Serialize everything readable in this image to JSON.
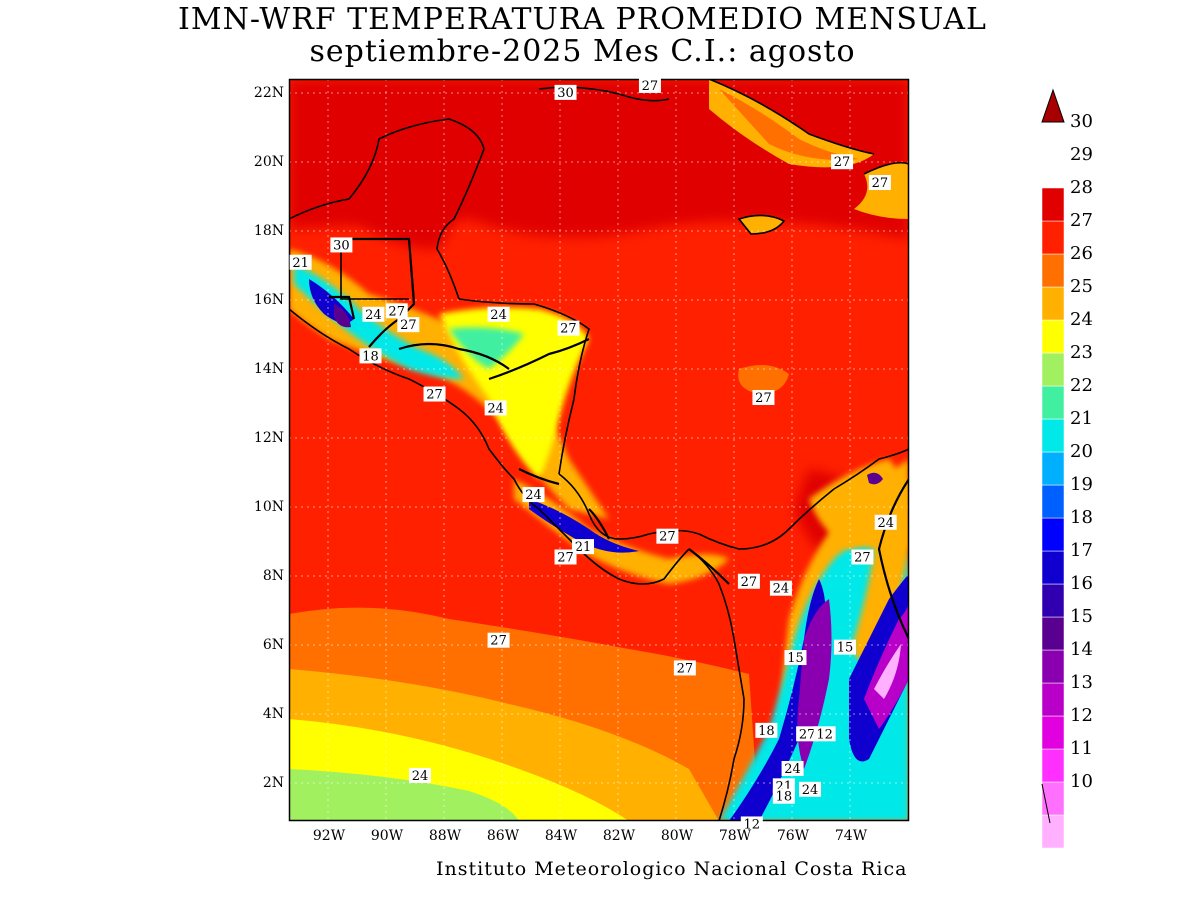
{
  "title": {
    "line1": "IMN-WRF  TEMPERATURA PROMEDIO MENSUAL",
    "line2": "septiembre-2025 Mes C.I.: agosto"
  },
  "footer": "Instituto Meteorologico Nacional Costa Rica",
  "axes": {
    "x_ticks": [
      "92W",
      "90W",
      "88W",
      "86W",
      "84W",
      "82W",
      "80W",
      "78W",
      "76W",
      "74W"
    ],
    "y_ticks": [
      "22N",
      "20N",
      "18N",
      "16N",
      "14N",
      "12N",
      "10N",
      "8N",
      "6N",
      "4N",
      "2N"
    ]
  },
  "map_extent": {
    "lon_min": -93.0,
    "lon_max": -71.7,
    "lat_min": 1.0,
    "lat_max": 22.4
  },
  "map_labels": [
    {
      "text": "30",
      "lon": -83.5,
      "lat": 22.0
    },
    {
      "text": "27",
      "lon": -80.6,
      "lat": 22.2
    },
    {
      "text": "27",
      "lon": -74.0,
      "lat": 20.0
    },
    {
      "text": "27",
      "lon": -72.7,
      "lat": 19.4
    },
    {
      "text": "30",
      "lon": -91.2,
      "lat": 17.6
    },
    {
      "text": "21",
      "lon": -92.6,
      "lat": 17.1
    },
    {
      "text": "24",
      "lon": -90.1,
      "lat": 15.6
    },
    {
      "text": "27",
      "lon": -89.3,
      "lat": 15.7
    },
    {
      "text": "27",
      "lon": -88.9,
      "lat": 15.3
    },
    {
      "text": "24",
      "lon": -85.8,
      "lat": 15.6
    },
    {
      "text": "27",
      "lon": -83.4,
      "lat": 15.2
    },
    {
      "text": "18",
      "lon": -90.2,
      "lat": 14.4
    },
    {
      "text": "27",
      "lon": -88.0,
      "lat": 13.3
    },
    {
      "text": "24",
      "lon": -85.9,
      "lat": 12.9
    },
    {
      "text": "27",
      "lon": -76.7,
      "lat": 13.2
    },
    {
      "text": "24",
      "lon": -84.6,
      "lat": 10.4
    },
    {
      "text": "24",
      "lon": -72.5,
      "lat": 9.6
    },
    {
      "text": "21",
      "lon": -82.9,
      "lat": 8.9
    },
    {
      "text": "27",
      "lon": -80.0,
      "lat": 9.2
    },
    {
      "text": "27",
      "lon": -83.5,
      "lat": 8.6
    },
    {
      "text": "27",
      "lon": -73.3,
      "lat": 8.6
    },
    {
      "text": "27",
      "lon": -77.2,
      "lat": 7.9
    },
    {
      "text": "24",
      "lon": -76.1,
      "lat": 7.7
    },
    {
      "text": "27",
      "lon": -85.8,
      "lat": 6.2
    },
    {
      "text": "15",
      "lon": -75.6,
      "lat": 5.7
    },
    {
      "text": "15",
      "lon": -73.9,
      "lat": 6.0
    },
    {
      "text": "27",
      "lon": -79.4,
      "lat": 5.4
    },
    {
      "text": "18",
      "lon": -76.6,
      "lat": 3.6
    },
    {
      "text": "27",
      "lon": -75.2,
      "lat": 3.5
    },
    {
      "text": "12",
      "lon": -74.6,
      "lat": 3.5
    },
    {
      "text": "24",
      "lon": -75.7,
      "lat": 2.5
    },
    {
      "text": "21",
      "lon": -76.0,
      "lat": 2.0
    },
    {
      "text": "18",
      "lon": -76.0,
      "lat": 1.7
    },
    {
      "text": "24",
      "lon": -75.1,
      "lat": 1.9
    },
    {
      "text": "24",
      "lon": -88.5,
      "lat": 2.3
    },
    {
      "text": "12",
      "lon": -77.1,
      "lat": 0.9
    }
  ],
  "colorbar": {
    "levels": [
      "10",
      "11",
      "12",
      "13",
      "14",
      "15",
      "16",
      "17",
      "18",
      "19",
      "20",
      "21",
      "22",
      "23",
      "24",
      "25",
      "26",
      "27",
      "28",
      "29",
      "30"
    ],
    "colors": [
      "#ffb0ff",
      "#ff70ff",
      "#ff30ff",
      "#e000e0",
      "#b800c8",
      "#8a00b0",
      "#5a0090",
      "#3000b0",
      "#1000d0",
      "#0000ff",
      "#0060ff",
      "#00b0ff",
      "#00e8e8",
      "#40f0a0",
      "#a0f060",
      "#ffff00",
      "#ffb000",
      "#ff7000",
      "#ff2000",
      "#e00000",
      "#a80000"
    ]
  },
  "chart_data": {
    "type": "heatmap",
    "title": "IMN-WRF  TEMPERATURA PROMEDIO MENSUAL",
    "subtitle": "septiembre-2025 Mes C.I.: agosto",
    "xlabel": "",
    "ylabel": "",
    "xlim": [
      -93.0,
      -71.7
    ],
    "ylim": [
      1.0,
      22.4
    ],
    "x_ticks": [
      "92W",
      "90W",
      "88W",
      "86W",
      "84W",
      "82W",
      "80W",
      "78W",
      "76W",
      "74W"
    ],
    "y_ticks": [
      "2N",
      "4N",
      "6N",
      "8N",
      "10N",
      "12N",
      "14N",
      "16N",
      "18N",
      "20N",
      "22N"
    ],
    "colorbar_levels": [
      10,
      11,
      12,
      13,
      14,
      15,
      16,
      17,
      18,
      19,
      20,
      21,
      22,
      23,
      24,
      25,
      26,
      27,
      28,
      29,
      30
    ],
    "grid": true
  }
}
